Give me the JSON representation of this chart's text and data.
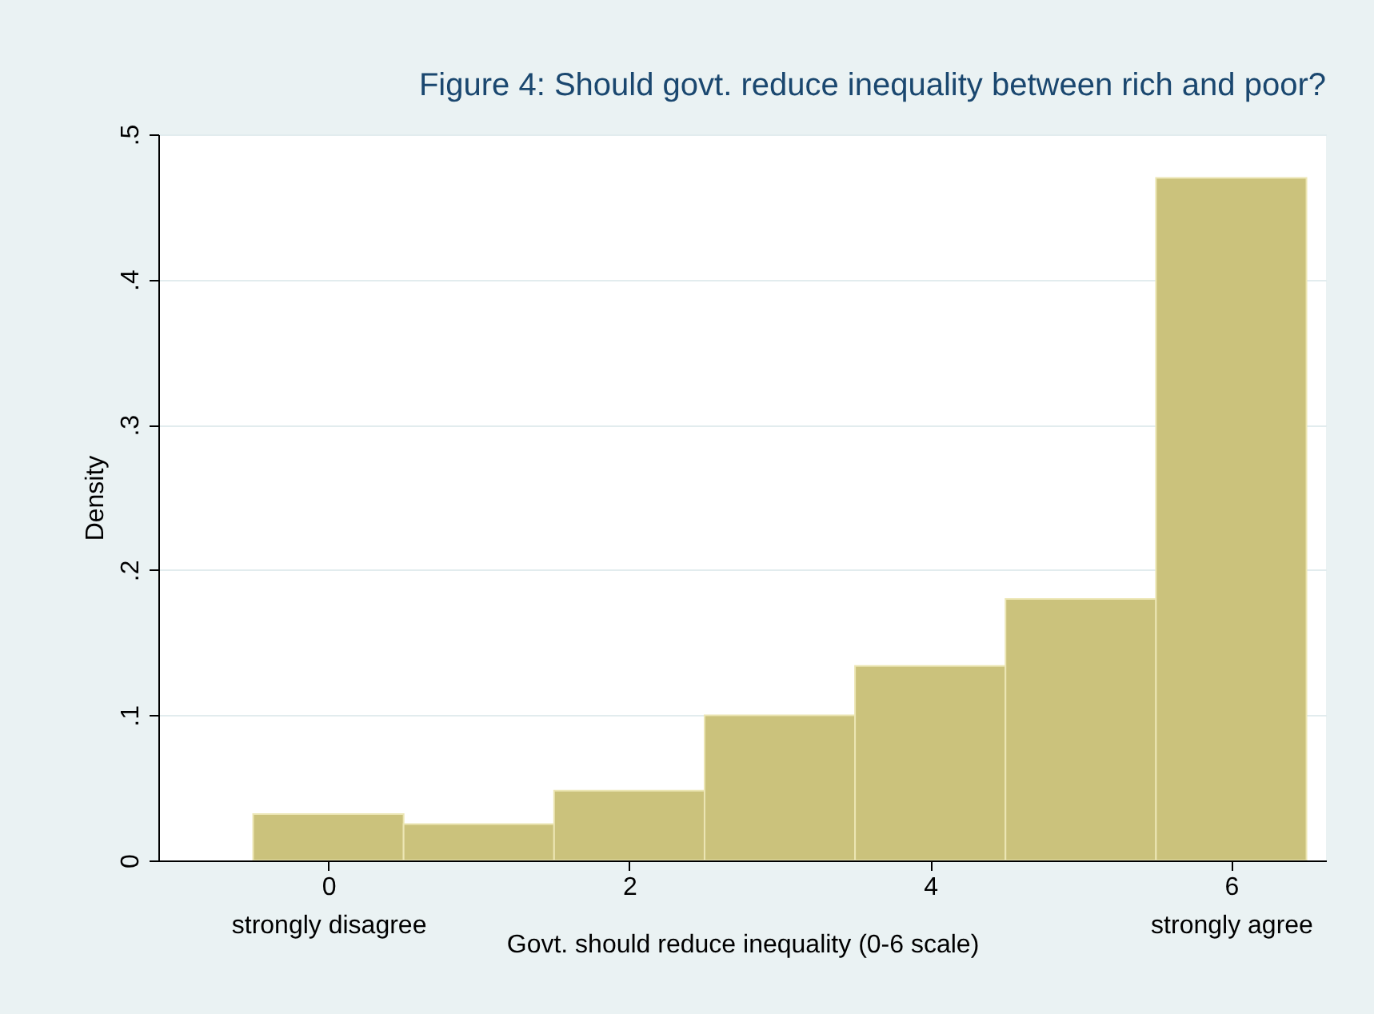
{
  "chart_data": {
    "type": "histogram",
    "title": "Figure 4: Should govt. reduce inequality between rich and poor?",
    "xlabel": "Govt. should reduce inequality (0-6 scale)",
    "ylabel": "Density",
    "bins": [
      -0.5,
      0.5,
      1.5,
      2.5,
      3.5,
      4.5,
      5.5,
      6.5
    ],
    "values": [
      0.032,
      0.025,
      0.048,
      0.1,
      0.134,
      0.18,
      0.47
    ],
    "color": "#cbc27c",
    "xlim": [
      -1.13,
      6.63
    ],
    "xticks": [
      {
        "value": 0,
        "label": "0\nstrongly disagree"
      },
      2,
      4,
      {
        "value": 6,
        "label": "6\nstrongly agree"
      }
    ],
    "ylim": [
      0,
      0.5
    ],
    "yticks": [
      0,
      {
        "value": 0.1,
        "label": ".1"
      },
      {
        "value": 0.2,
        "label": ".2"
      },
      {
        "value": 0.3,
        "label": ".3"
      },
      {
        "value": 0.4,
        "label": ".4"
      },
      {
        "value": 0.5,
        "label": ".5"
      }
    ],
    "grid": "y"
  }
}
